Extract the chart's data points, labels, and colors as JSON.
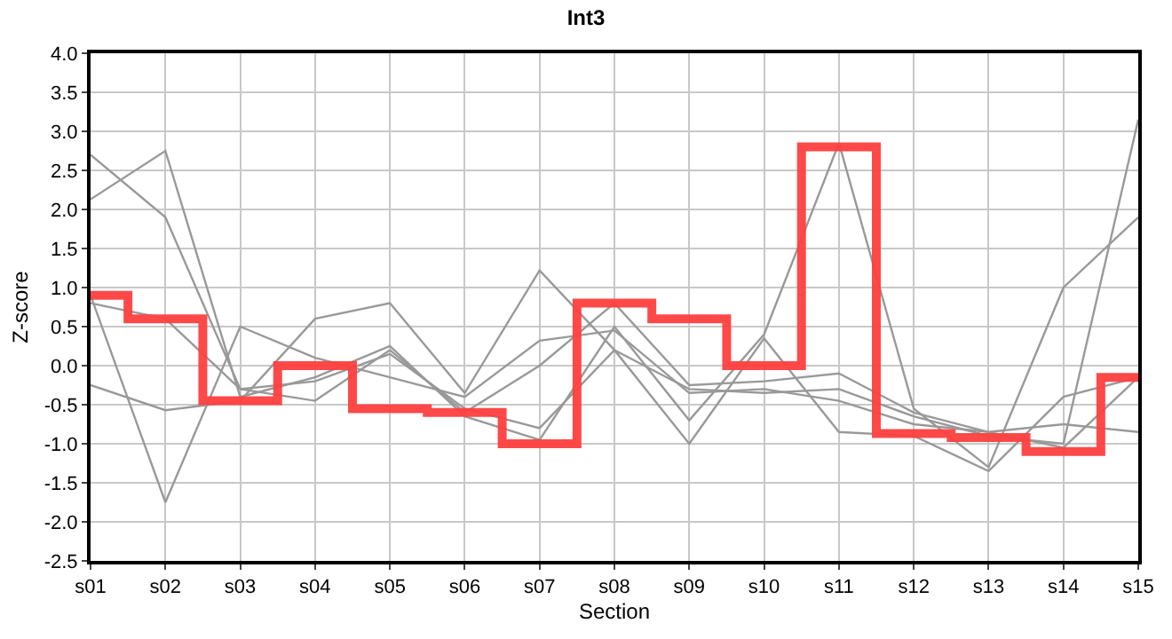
{
  "chart_data": {
    "type": "line",
    "title": "Int3",
    "xlabel": "Section",
    "ylabel": "Z-score",
    "categories": [
      "s01",
      "s02",
      "s03",
      "s04",
      "s05",
      "s06",
      "s07",
      "s08",
      "s09",
      "s10",
      "s11",
      "s12",
      "s13",
      "s14",
      "s15"
    ],
    "series": [
      {
        "color": "#999999",
        "values": [
          2.7,
          1.9,
          -0.3,
          -0.2,
          0.15,
          -0.55,
          -0.8,
          0.2,
          -0.3,
          -0.35,
          -0.3,
          -0.65,
          -0.9,
          -1.0,
          3.15
        ]
      },
      {
        "color": "#999999",
        "values": [
          2.13,
          2.75,
          -0.4,
          -0.15,
          0.25,
          -0.65,
          -0.95,
          0.5,
          -0.7,
          0.4,
          2.85,
          -0.55,
          -1.3,
          1.0,
          1.9
        ]
      },
      {
        "color": "#999999",
        "values": [
          0.9,
          -1.75,
          0.5,
          0.1,
          -0.15,
          -0.4,
          0.32,
          0.45,
          -0.35,
          -0.3,
          -0.45,
          -0.75,
          -0.85,
          -0.75,
          -0.85
        ]
      },
      {
        "color": "#999999",
        "values": [
          -0.25,
          -0.57,
          -0.45,
          0.6,
          0.8,
          -0.35,
          1.22,
          0.2,
          -1.0,
          0.35,
          -0.85,
          -0.9,
          -1.35,
          -0.4,
          -0.15
        ]
      },
      {
        "color": "#999999",
        "values": [
          0.8,
          0.6,
          -0.3,
          -0.45,
          0.2,
          -0.6,
          0.0,
          0.8,
          -0.25,
          -0.2,
          -0.1,
          -0.6,
          -0.85,
          -1.05,
          -0.15
        ]
      },
      {
        "type": "step",
        "color": "#ff4040",
        "values": [
          0.9,
          0.6,
          -0.45,
          0.0,
          -0.55,
          -0.6,
          -1.0,
          0.8,
          0.6,
          0.0,
          2.8,
          -0.87,
          -0.92,
          -1.1,
          -0.15
        ]
      }
    ],
    "ylim": [
      -2.5,
      4.0
    ],
    "yticks": [
      {
        "value": -2.5,
        "label": "-2.5"
      },
      {
        "value": -2,
        "label": "-2.0"
      },
      {
        "value": -1.5,
        "label": "-1.5"
      },
      {
        "value": -1,
        "label": "-1.0"
      },
      {
        "value": -0.5,
        "label": "-0.5"
      },
      {
        "value": 0,
        "label": "0.0"
      },
      {
        "value": 0.5,
        "label": "0.5"
      },
      {
        "value": 1,
        "label": "1.0"
      },
      {
        "value": 1.5,
        "label": "1.5"
      },
      {
        "value": 2,
        "label": "2.0"
      },
      {
        "value": 2.5,
        "label": "2.5"
      },
      {
        "value": 3,
        "label": "3.0"
      },
      {
        "value": 3.5,
        "label": "3.5"
      },
      {
        "value": 4,
        "label": "4.0"
      }
    ],
    "grid": true
  }
}
